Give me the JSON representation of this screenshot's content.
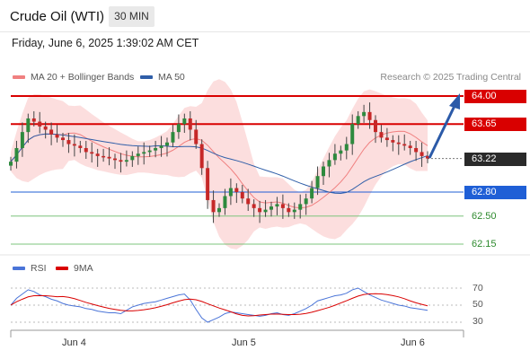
{
  "header": {
    "title": "Crude Oil (WTI)",
    "timeframe": "30 MIN",
    "datetime": "Friday, June 6, 2025 1:39:02 AM CET"
  },
  "legend": {
    "ma20_label": "MA 20 + Bollinger Bands",
    "ma50_label": "MA 50",
    "copyright": "Research © 2025 Trading Central",
    "ma20_color": "#f08080",
    "ma50_color": "#2f5ea8"
  },
  "chart_data": {
    "type": "candlestick",
    "instrument": "Crude Oil (WTI)",
    "interval": "30 MIN",
    "y_range": [
      62.05,
      64.15
    ],
    "x_labels": [
      "Jun 4",
      "Jun 5",
      "Jun 6"
    ],
    "current_price": "63.22",
    "levels": [
      {
        "value": "64.00",
        "kind": "resistance",
        "color": "#d90000"
      },
      {
        "value": "63.65",
        "kind": "resistance",
        "color": "#d90000"
      },
      {
        "value": "63.22",
        "kind": "last",
        "color": "#2a2a2a"
      },
      {
        "value": "62.80",
        "kind": "support",
        "color": "#1f5fd6"
      },
      {
        "value": "62.50",
        "kind": "support",
        "color": "#2e8a2e"
      },
      {
        "value": "62.15",
        "kind": "support",
        "color": "#2e8a2e"
      }
    ],
    "closes": [
      63.18,
      63.35,
      63.55,
      63.72,
      63.68,
      63.62,
      63.58,
      63.52,
      63.48,
      63.45,
      63.4,
      63.38,
      63.35,
      63.3,
      63.28,
      63.25,
      63.24,
      63.22,
      63.2,
      63.18,
      63.2,
      63.25,
      63.28,
      63.3,
      63.32,
      63.35,
      63.38,
      63.42,
      63.55,
      63.65,
      63.72,
      63.58,
      63.4,
      63.1,
      62.7,
      62.55,
      62.6,
      62.75,
      62.85,
      62.8,
      62.72,
      62.65,
      62.6,
      62.55,
      62.58,
      62.62,
      62.65,
      62.6,
      62.55,
      62.58,
      62.65,
      62.72,
      62.85,
      63.0,
      63.12,
      63.2,
      63.28,
      63.32,
      63.4,
      63.65,
      63.75,
      63.8,
      63.7,
      63.55,
      63.48,
      63.45,
      63.42,
      63.4,
      63.38,
      63.35,
      63.3,
      63.25,
      63.22
    ],
    "rsi": {
      "labels": [
        "RSI",
        "9MA"
      ],
      "ticks": [
        "70",
        "50",
        "30"
      ],
      "values": [
        50,
        58,
        63,
        68,
        66,
        62,
        60,
        57,
        55,
        52,
        50,
        49,
        48,
        46,
        45,
        43,
        42,
        41,
        41,
        40,
        44,
        48,
        50,
        52,
        53,
        54,
        56,
        58,
        60,
        62,
        63,
        56,
        45,
        35,
        30,
        33,
        36,
        40,
        42,
        41,
        40,
        39,
        38,
        37,
        38,
        40,
        41,
        39,
        38,
        40,
        43,
        46,
        50,
        55,
        57,
        59,
        61,
        62,
        64,
        68,
        70,
        66,
        62,
        59,
        56,
        54,
        52,
        50,
        49,
        47,
        46,
        45,
        44
      ],
      "colors": {
        "rsi": "#4a74d8",
        "ma": "#d90000"
      }
    }
  }
}
